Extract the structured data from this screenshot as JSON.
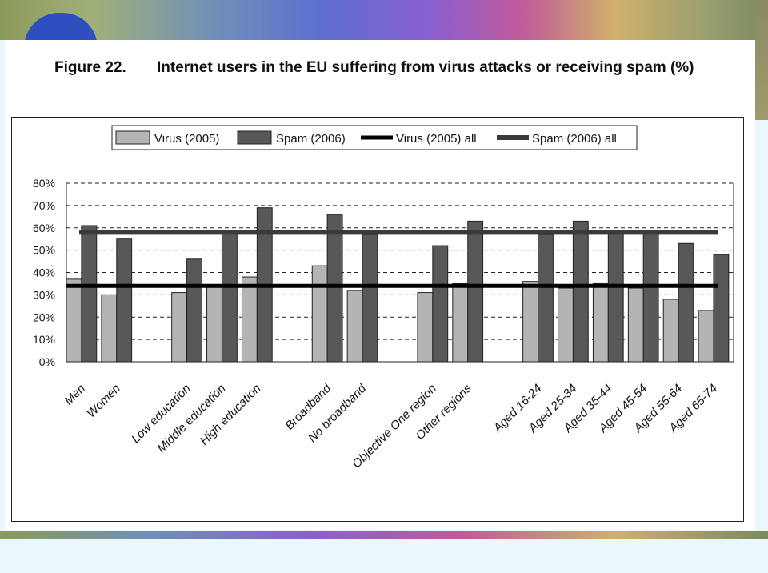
{
  "figure": {
    "number": "Figure 22.",
    "title": "Internet users in the EU suffering from virus attacks or receiving spam (%)"
  },
  "colors": {
    "virus_bar": "#b4b4b4",
    "spam_bar": "#585858",
    "virus_line": "#000000",
    "spam_line": "#3a3a3a"
  },
  "chart_data": {
    "type": "bar",
    "categories": [
      "Men",
      "Women",
      "",
      "Low education",
      "Middle education",
      "High education",
      "",
      "Broadband",
      "No broadband",
      "",
      "Objective One region",
      "Other regions",
      "",
      "Aged 16-24",
      "Aged 25-34",
      "Aged 35-44",
      "Aged 45-54",
      "Aged 55-64",
      "Aged 65-74"
    ],
    "series": [
      {
        "name": "Virus (2005)",
        "values": [
          37,
          30,
          null,
          31,
          34,
          38,
          null,
          43,
          32,
          null,
          31,
          35,
          null,
          36,
          33,
          35,
          33,
          28,
          23
        ]
      },
      {
        "name": "Spam (2006)",
        "values": [
          61,
          55,
          null,
          46,
          58,
          69,
          null,
          66,
          57,
          null,
          52,
          63,
          null,
          57,
          63,
          59,
          58,
          53,
          48
        ]
      }
    ],
    "reference_lines": [
      {
        "name": "Virus (2005) all",
        "value": 34
      },
      {
        "name": "Spam (2006) all",
        "value": 58
      }
    ],
    "yticks": [
      "0%",
      "10%",
      "20%",
      "30%",
      "40%",
      "50%",
      "60%",
      "70%",
      "80%"
    ],
    "ylim": [
      0,
      80
    ],
    "grid": "horizontal dashed",
    "legend": "top"
  }
}
